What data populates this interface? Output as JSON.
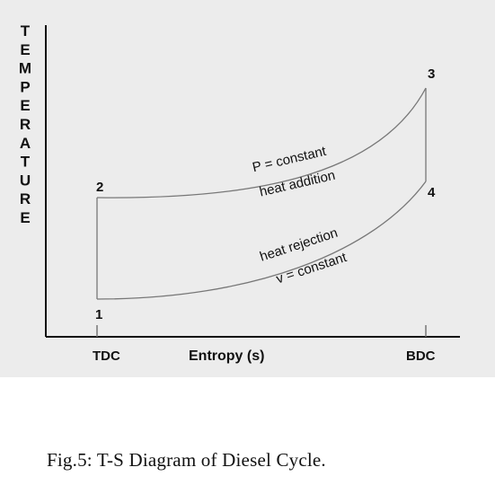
{
  "diagram": {
    "y_axis_label": "TEMPERATURE",
    "x_axis_label": "Entropy (s)",
    "x_ticks": {
      "left": "TDC",
      "right": "BDC"
    },
    "points": {
      "p1": "1",
      "p2": "2",
      "p3": "3",
      "p4": "4"
    },
    "upper_curve_labels": {
      "line1": "P = constant",
      "line2": "heat addition"
    },
    "lower_curve_labels": {
      "line1": "heat rejection",
      "line2": "v = constant"
    },
    "colors": {
      "background": "#ececec",
      "axis": "#111111",
      "curve": "#777777",
      "text": "#111111"
    }
  },
  "caption": "Fig.5: T-S Diagram of Diesel Cycle."
}
